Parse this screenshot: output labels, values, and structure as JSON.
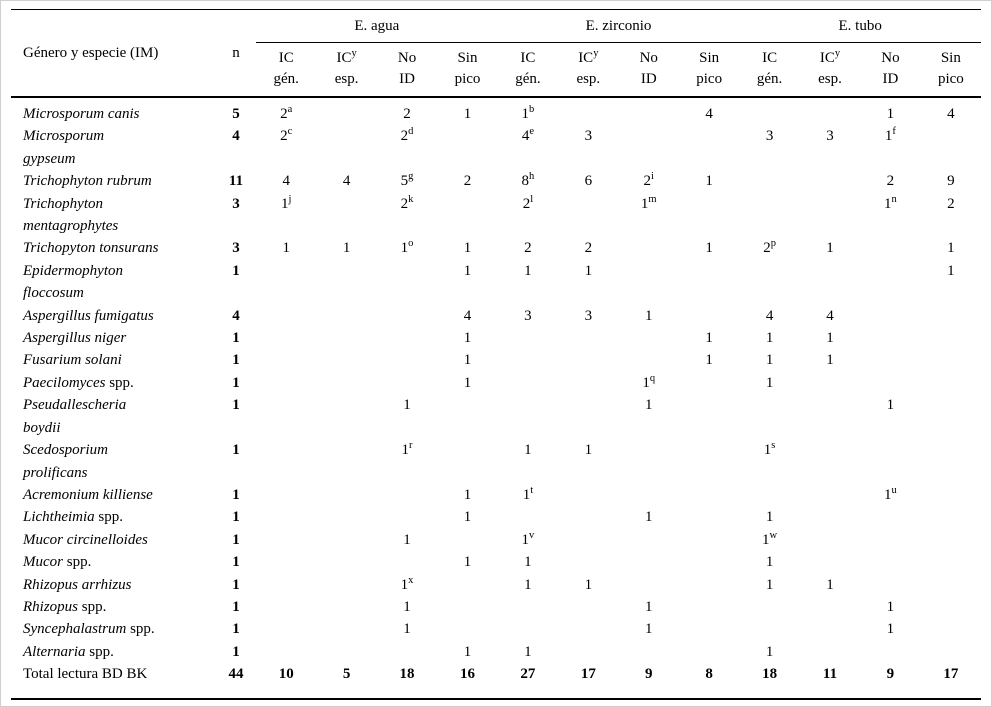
{
  "header": {
    "name_col": "Género y especie (IM)",
    "n_col": "n",
    "groups": [
      "E. agua",
      "E. zirconio",
      "E. tubo"
    ],
    "subcols": [
      {
        "line1": "IC",
        "sup": "",
        "line2": "gén."
      },
      {
        "line1": "IC",
        "sup": "y",
        "line2": "esp."
      },
      {
        "line1": "No",
        "sup": "",
        "line2": "ID"
      },
      {
        "line1": "Sin",
        "sup": "",
        "line2": "pico"
      }
    ]
  },
  "chart_data": {
    "type": "table",
    "title": "",
    "column_groups": [
      "E. agua",
      "E. zirconio",
      "E. tubo"
    ],
    "columns_per_group": [
      "IC gén.",
      "ICy esp.",
      "No ID",
      "Sin pico"
    ]
  },
  "table": {
    "rows": [
      {
        "name_italic": "Microsporum canis",
        "name_regular": "",
        "n": "5",
        "cells": [
          "2^a",
          "",
          "2",
          "1",
          "1^b",
          "",
          "",
          "4",
          "",
          "",
          "1",
          "4"
        ]
      },
      {
        "name_italic": "Microsporum\ngypseum",
        "name_regular": "",
        "n": "4",
        "cells": [
          "2^c",
          "",
          "2^d",
          "",
          "4^e",
          "3",
          "",
          "",
          "3",
          "3",
          "1^f",
          ""
        ]
      },
      {
        "name_italic": "Trichophyton rubrum",
        "name_regular": "",
        "n": "11",
        "cells": [
          "4",
          "4",
          "5^g",
          "2",
          "8^h",
          "6",
          "2^i",
          "1",
          "",
          "",
          "2",
          "9"
        ]
      },
      {
        "name_italic": "Trichophyton\nmentagrophytes",
        "name_regular": "",
        "n": "3",
        "cells": [
          "1^j",
          "",
          "2^k",
          "",
          "2^l",
          "",
          "1^m",
          "",
          "",
          "",
          "1^n",
          "2"
        ]
      },
      {
        "name_italic": "Trichopyton tonsurans",
        "name_regular": "",
        "n": "3",
        "cells": [
          "1",
          "1",
          "1^o",
          "1",
          "2",
          "2",
          "",
          "1",
          "2^p",
          "1",
          "",
          "1"
        ]
      },
      {
        "name_italic": "Epidermophyton\nfloccosum",
        "name_regular": "",
        "n": "1",
        "cells": [
          "",
          "",
          "",
          "1",
          "1",
          "1",
          "",
          "",
          "",
          "",
          "",
          "1"
        ]
      },
      {
        "name_italic": "Aspergillus fumigatus",
        "name_regular": "",
        "n": "4",
        "cells": [
          "",
          "",
          "",
          "4",
          "3",
          "3",
          "1",
          "",
          "4",
          "4",
          "",
          ""
        ]
      },
      {
        "name_italic": "Aspergillus niger",
        "name_regular": "",
        "n": "1",
        "cells": [
          "",
          "",
          "",
          "1",
          "",
          "",
          "",
          "1",
          "1",
          "1",
          "",
          ""
        ]
      },
      {
        "name_italic": "Fusarium solani",
        "name_regular": "",
        "n": "1",
        "cells": [
          "",
          "",
          "",
          "1",
          "",
          "",
          "",
          "1",
          "1",
          "1",
          "",
          ""
        ]
      },
      {
        "name_italic": "Paecilomyces",
        "name_regular": " spp.",
        "n": "1",
        "cells": [
          "",
          "",
          "",
          "1",
          "",
          "",
          "1^q",
          "",
          "1",
          "",
          "",
          ""
        ]
      },
      {
        "name_italic": "Pseudallescheria\nboydii",
        "name_regular": "",
        "n": "1",
        "cells": [
          "",
          "",
          "1",
          "",
          "",
          "",
          "1",
          "",
          "",
          "",
          "1",
          ""
        ]
      },
      {
        "name_italic": "Scedosporium\nprolificans",
        "name_regular": "",
        "n": "1",
        "cells": [
          "",
          "",
          "1^r",
          "",
          "1",
          "1",
          "",
          "",
          "1^s",
          "",
          "",
          ""
        ]
      },
      {
        "name_italic": "Acremonium killiense",
        "name_regular": "",
        "n": "1",
        "cells": [
          "",
          "",
          "",
          "1",
          "1^t",
          "",
          "",
          "",
          "",
          "",
          "1^u",
          ""
        ]
      },
      {
        "name_italic": "Lichtheimia",
        "name_regular": " spp.",
        "n": "1",
        "cells": [
          "",
          "",
          "",
          "1",
          "",
          "",
          "1",
          "",
          "1",
          "",
          "",
          ""
        ]
      },
      {
        "name_italic": "Mucor circinelloides",
        "name_regular": "",
        "n": "1",
        "cells": [
          "",
          "",
          "1",
          "",
          "1^v",
          "",
          "",
          "",
          "1^w",
          "",
          "",
          ""
        ]
      },
      {
        "name_italic": "Mucor",
        "name_regular": " spp.",
        "n": "1",
        "cells": [
          "",
          "",
          "",
          "1",
          "1",
          "",
          "",
          "",
          "1",
          "",
          "",
          ""
        ]
      },
      {
        "name_italic": "Rhizopus arrhizus",
        "name_regular": "",
        "n": "1",
        "cells": [
          "",
          "",
          "1^x",
          "",
          "1",
          "1",
          "",
          "",
          "1",
          "1",
          "",
          ""
        ]
      },
      {
        "name_italic": "Rhizopus",
        "name_regular": " spp.",
        "n": "1",
        "cells": [
          "",
          "",
          "1",
          "",
          "",
          "",
          "1",
          "",
          "",
          "",
          "1",
          ""
        ]
      },
      {
        "name_italic": "Syncephalastrum",
        "name_regular": " spp.",
        "n": "1",
        "cells": [
          "",
          "",
          "1",
          "",
          "",
          "",
          "1",
          "",
          "",
          "",
          "1",
          ""
        ]
      },
      {
        "name_italic": "Alternaria",
        "name_regular": " spp.",
        "n": "1",
        "cells": [
          "",
          "",
          "",
          "1",
          "1",
          "",
          "",
          "",
          "1",
          "",
          "",
          ""
        ]
      },
      {
        "name_italic": "",
        "name_regular": "Total lectura BD BK",
        "n": "44",
        "bold": true,
        "cells": [
          "10",
          "5",
          "18",
          "16",
          "27",
          "17",
          "9",
          "8",
          "18",
          "11",
          "9",
          "17"
        ]
      }
    ]
  }
}
